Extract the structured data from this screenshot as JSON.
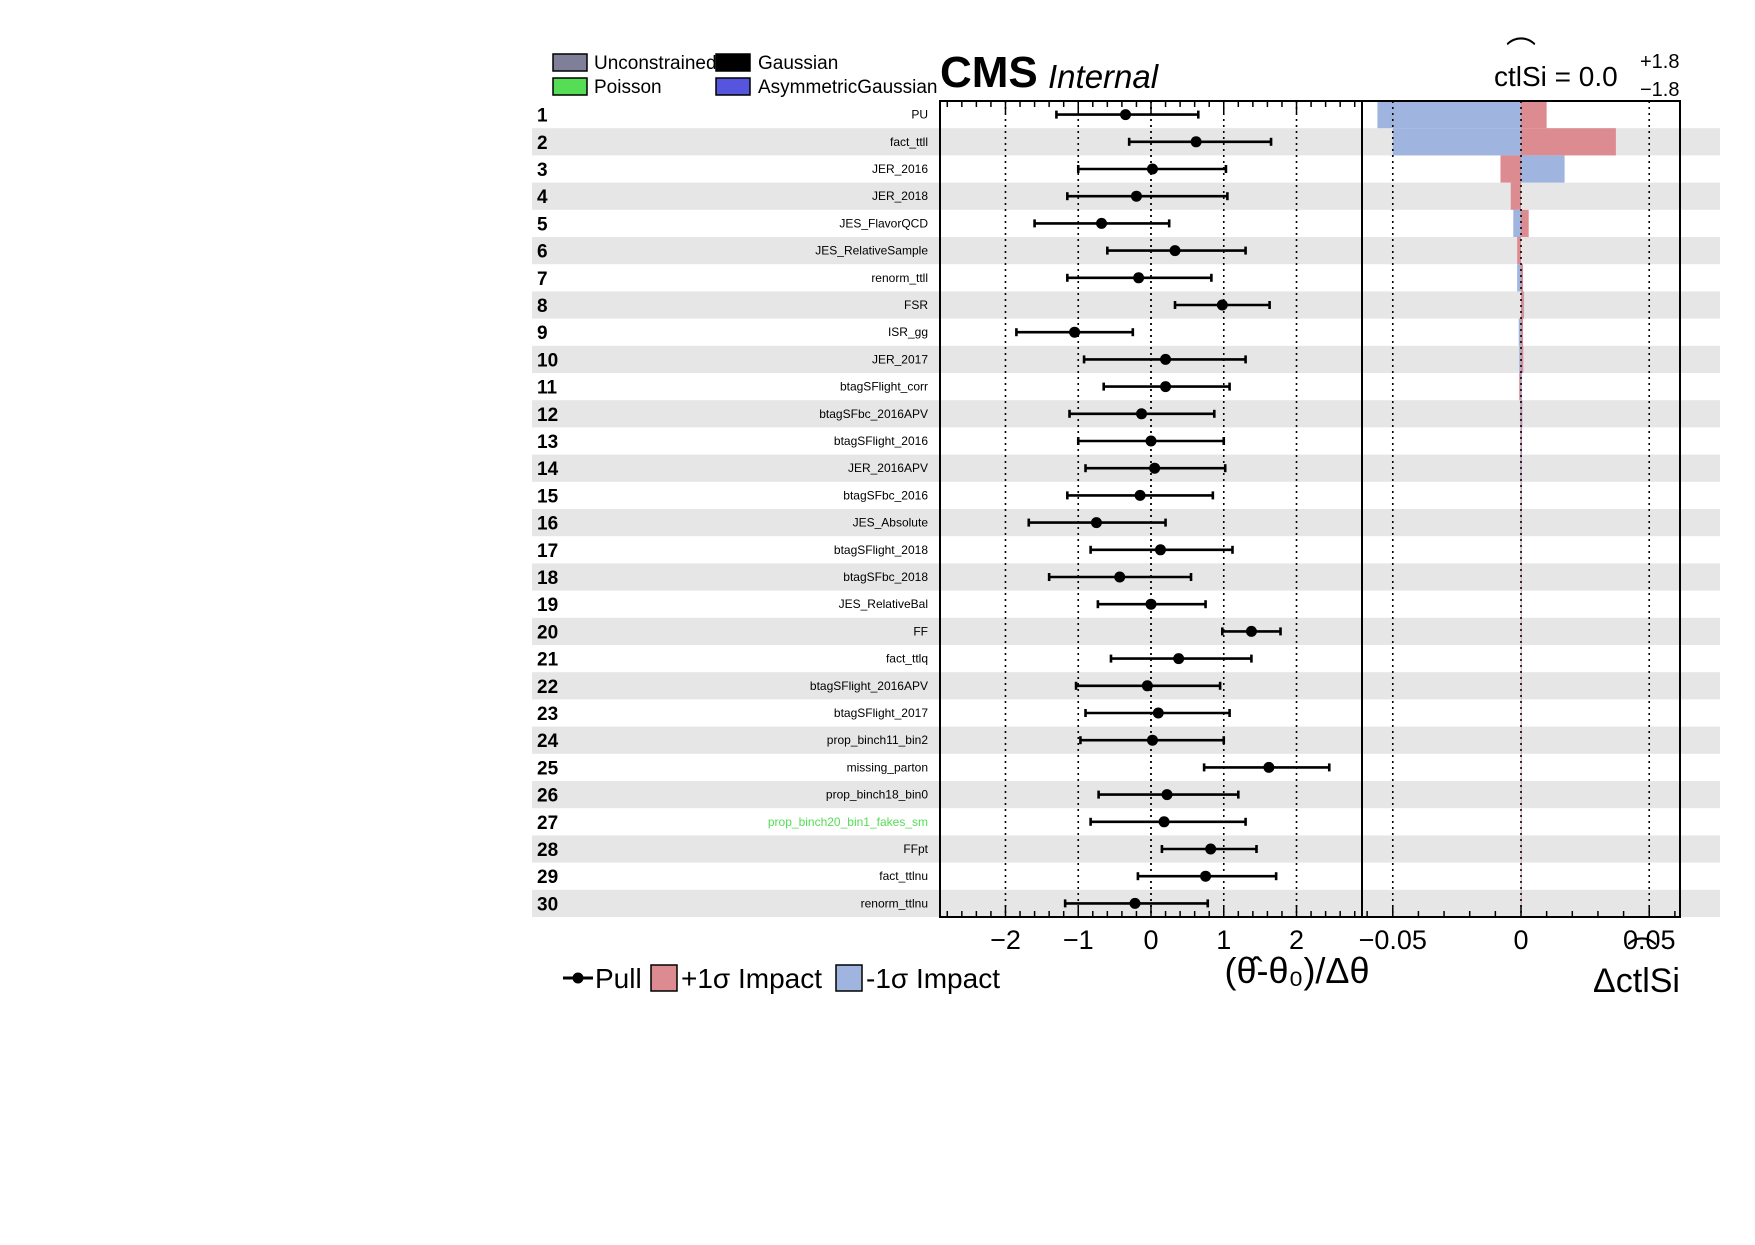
{
  "header": {
    "cms": "CMS",
    "internal": "Internal",
    "poi_label": "ctlSi = 0.0",
    "poi_up": "+1.8",
    "poi_down": "−1.8"
  },
  "legend_top": [
    {
      "label": "Unconstrained",
      "color": "#7f7f9a"
    },
    {
      "label": "Gaussian",
      "color": "#000000"
    },
    {
      "label": "Poisson",
      "color": "#55dd55"
    },
    {
      "label": "AsymmetricGaussian",
      "color": "#5555dd"
    }
  ],
  "legend_bottom": {
    "pull": "Pull",
    "plus": "+1σ Impact",
    "minus": "-1σ Impact"
  },
  "colors": {
    "plus_impact": "#dc8c90",
    "minus_impact": "#9fb5e0",
    "row_band": "#e6e6e6",
    "poisson_text": "#55dd55"
  },
  "chart_data": {
    "type": "pull-impact",
    "pulls_axis": {
      "label": "(θ̂-θ₀)/Δθ",
      "xlim": [
        -2.9,
        2.9
      ],
      "ticks": [
        -2,
        -1,
        0,
        1,
        2
      ],
      "tick_labels": [
        "−2",
        "−1",
        "0",
        "1",
        "2"
      ]
    },
    "impact_axis": {
      "label": "ΔctlSi",
      "xlim": [
        -0.062,
        0.062
      ],
      "ticks": [
        -0.05,
        0,
        0.05
      ],
      "tick_labels": [
        "−0.05",
        "0",
        "0.05"
      ]
    },
    "rows": [
      {
        "rank": "1",
        "name": "PU",
        "pull": -0.35,
        "lo": -1.3,
        "hi": 0.65,
        "up": 0.01,
        "down": -0.056
      },
      {
        "rank": "2",
        "name": "fact_ttll",
        "pull": 0.62,
        "lo": -0.3,
        "hi": 1.65,
        "up": 0.037,
        "down": -0.05
      },
      {
        "rank": "3",
        "name": "JER_2016",
        "pull": 0.02,
        "lo": -1.0,
        "hi": 1.03,
        "up": -0.008,
        "down": 0.017
      },
      {
        "rank": "4",
        "name": "JER_2018",
        "pull": -0.2,
        "lo": -1.15,
        "hi": 1.05,
        "up": -0.004,
        "down": -0.003
      },
      {
        "rank": "5",
        "name": "JES_FlavorQCD",
        "pull": -0.68,
        "lo": -1.6,
        "hi": 0.25,
        "up": 0.003,
        "down": -0.003
      },
      {
        "rank": "6",
        "name": "JES_RelativeSample",
        "pull": 0.33,
        "lo": -0.6,
        "hi": 1.3,
        "up": -0.0015,
        "down": -0.0012
      },
      {
        "rank": "7",
        "name": "renorm_ttll",
        "pull": -0.17,
        "lo": -1.15,
        "hi": 0.83,
        "up": 0.0008,
        "down": -0.0015
      },
      {
        "rank": "8",
        "name": "FSR",
        "pull": 0.98,
        "lo": 0.33,
        "hi": 1.63,
        "up": 0.001,
        "down": 0.0012
      },
      {
        "rank": "9",
        "name": "ISR_gg",
        "pull": -1.05,
        "lo": -1.85,
        "hi": -0.25,
        "up": 0.0008,
        "down": -0.0009
      },
      {
        "rank": "10",
        "name": "JER_2017",
        "pull": 0.2,
        "lo": -0.92,
        "hi": 1.3,
        "up": 0.0009,
        "down": -0.0007
      },
      {
        "rank": "11",
        "name": "btagSFlight_corr",
        "pull": 0.2,
        "lo": -0.65,
        "hi": 1.08,
        "up": -0.0007,
        "down": 0.0004
      },
      {
        "rank": "12",
        "name": "btagSFbc_2016APV",
        "pull": -0.13,
        "lo": -1.12,
        "hi": 0.87,
        "up": 0.0005,
        "down": -0.0004
      },
      {
        "rank": "13",
        "name": "btagSFlight_2016",
        "pull": 0.0,
        "lo": -1.0,
        "hi": 1.0,
        "up": 0.0004,
        "down": -0.0003
      },
      {
        "rank": "14",
        "name": "JER_2016APV",
        "pull": 0.05,
        "lo": -0.9,
        "hi": 1.02,
        "up": 0.0003,
        "down": -0.0003
      },
      {
        "rank": "15",
        "name": "btagSFbc_2016",
        "pull": -0.15,
        "lo": -1.15,
        "hi": 0.85,
        "up": 0.0003,
        "down": -0.0002
      },
      {
        "rank": "16",
        "name": "JES_Absolute",
        "pull": -0.75,
        "lo": -1.68,
        "hi": 0.2,
        "up": 0.0002,
        "down": -0.0002
      },
      {
        "rank": "17",
        "name": "btagSFlight_2018",
        "pull": 0.13,
        "lo": -0.83,
        "hi": 1.12,
        "up": 0.0002,
        "down": -0.0002
      },
      {
        "rank": "18",
        "name": "btagSFbc_2018",
        "pull": -0.43,
        "lo": -1.4,
        "hi": 0.55,
        "up": 0.0002,
        "down": -0.0001
      },
      {
        "rank": "19",
        "name": "JES_RelativeBal",
        "pull": 0.0,
        "lo": -0.73,
        "hi": 0.75,
        "up": 0.0001,
        "down": -0.0001
      },
      {
        "rank": "20",
        "name": "FF",
        "pull": 1.38,
        "lo": 0.98,
        "hi": 1.78,
        "up": 0.0001,
        "down": -0.0001
      },
      {
        "rank": "21",
        "name": "fact_ttlq",
        "pull": 0.38,
        "lo": -0.55,
        "hi": 1.38,
        "up": 0.0001,
        "down": -0.0001
      },
      {
        "rank": "22",
        "name": "btagSFlight_2016APV",
        "pull": -0.05,
        "lo": -1.03,
        "hi": 0.95,
        "up": 0.0001,
        "down": -0.0001
      },
      {
        "rank": "23",
        "name": "btagSFlight_2017",
        "pull": 0.1,
        "lo": -0.9,
        "hi": 1.08,
        "up": 0.0001,
        "down": -0.0001
      },
      {
        "rank": "24",
        "name": "prop_binch11_bin2",
        "pull": 0.02,
        "lo": -0.97,
        "hi": 1.0,
        "up": 0.0001,
        "down": -0.0001
      },
      {
        "rank": "25",
        "name": "missing_parton",
        "pull": 1.62,
        "lo": 0.73,
        "hi": 2.45,
        "up": 0.0001,
        "down": -0.0001
      },
      {
        "rank": "26",
        "name": "prop_binch18_bin0",
        "pull": 0.22,
        "lo": -0.72,
        "hi": 1.2,
        "up": 0.0001,
        "down": -0.0001
      },
      {
        "rank": "27",
        "name": "prop_binch20_bin1_fakes_sm",
        "pull": 0.18,
        "lo": -0.83,
        "hi": 1.3,
        "up": 0.0001,
        "down": -0.0001,
        "poisson": true
      },
      {
        "rank": "28",
        "name": "FFpt",
        "pull": 0.82,
        "lo": 0.15,
        "hi": 1.45,
        "up": 0.0001,
        "down": -0.0001
      },
      {
        "rank": "29",
        "name": "fact_ttlnu",
        "pull": 0.75,
        "lo": -0.18,
        "hi": 1.72,
        "up": 0.0001,
        "down": -0.0001
      },
      {
        "rank": "30",
        "name": "renorm_ttlnu",
        "pull": -0.22,
        "lo": -1.18,
        "hi": 0.78,
        "up": 0.0001,
        "down": -0.0001
      }
    ]
  }
}
